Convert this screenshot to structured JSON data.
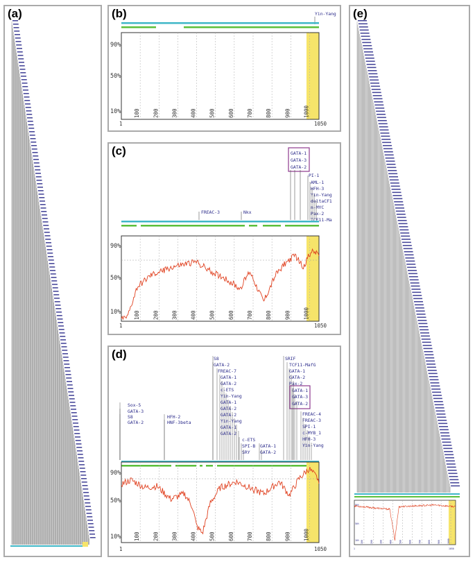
{
  "panels": {
    "a": {
      "label": "(a)"
    },
    "b": {
      "label": "(b)",
      "tf_labels": [
        "Yin-Yang"
      ],
      "y_ticks": [
        "90%",
        "50%",
        "10%"
      ],
      "x_ticks": [
        "100",
        "200",
        "300",
        "400",
        "500",
        "600",
        "700",
        "800",
        "900",
        "1000"
      ],
      "x_start": "1",
      "x_end": "1050"
    },
    "c": {
      "label": "(c)",
      "tf_labels": [
        "FREAC-3",
        "Nkx",
        "GATA-1",
        "GATA-3",
        "GATA-2",
        "PI-1",
        "AML-1",
        "HFH-3",
        "Yin-Yang",
        "deltaCF1",
        "n-MYC",
        "Pax-2",
        "TCF11-Ma"
      ],
      "y_ticks": [
        "90%",
        "50%",
        "10%"
      ],
      "x_ticks": [
        "100",
        "200",
        "300",
        "400",
        "500",
        "600",
        "700",
        "800",
        "900",
        "1000"
      ],
      "x_start": "1",
      "x_end": "1050"
    },
    "d": {
      "label": "(d)",
      "tf_labels": [
        "Sox-5",
        "GATA-3",
        "S8",
        "GATA-2",
        "HFH-2",
        "HNF-3beta",
        "S8",
        "GATA-2",
        "FREAC-7",
        "GATA-1",
        "GATA-2",
        "c-ETS",
        "Yin-Yang",
        "GATA-1",
        "GATA-2",
        "GATA-2",
        "Yin-Yang",
        "GATA-1",
        "GATA-2",
        "c-ETS",
        "SPI-B",
        "SRY",
        "GATA-1",
        "GATA-2",
        "SRIF",
        "TCF11-MafG",
        "GATA-1",
        "GATA-2",
        "Pax-2",
        "GATA-1",
        "GATA-3",
        "GATA-2",
        "FREAC-4",
        "FREAC-3",
        "SPI-1",
        "c-MYB_1",
        "HFH-3",
        "Yin-Yang"
      ],
      "y_ticks": [
        "90%",
        "50%",
        "10%"
      ],
      "x_ticks": [
        "100",
        "200",
        "300",
        "400",
        "500",
        "600",
        "700",
        "800",
        "900",
        "1000"
      ],
      "x_start": "1",
      "x_end": "1050"
    },
    "e": {
      "label": "(e)",
      "y_ticks": [
        "90%",
        "50%",
        "10%"
      ],
      "x_ticks": [
        "100",
        "200",
        "300",
        "400",
        "500",
        "600",
        "700",
        "800",
        "900",
        "1000"
      ],
      "x_start": "1",
      "x_end": "1050"
    }
  },
  "colors": {
    "track_cyan": "#3fb7c7",
    "track_green": "#5bbf3a",
    "curve": "#e0401f",
    "highlight": "#f6e46a",
    "box": "#8e3a8e",
    "tf_text": "#2a2a8a"
  }
}
